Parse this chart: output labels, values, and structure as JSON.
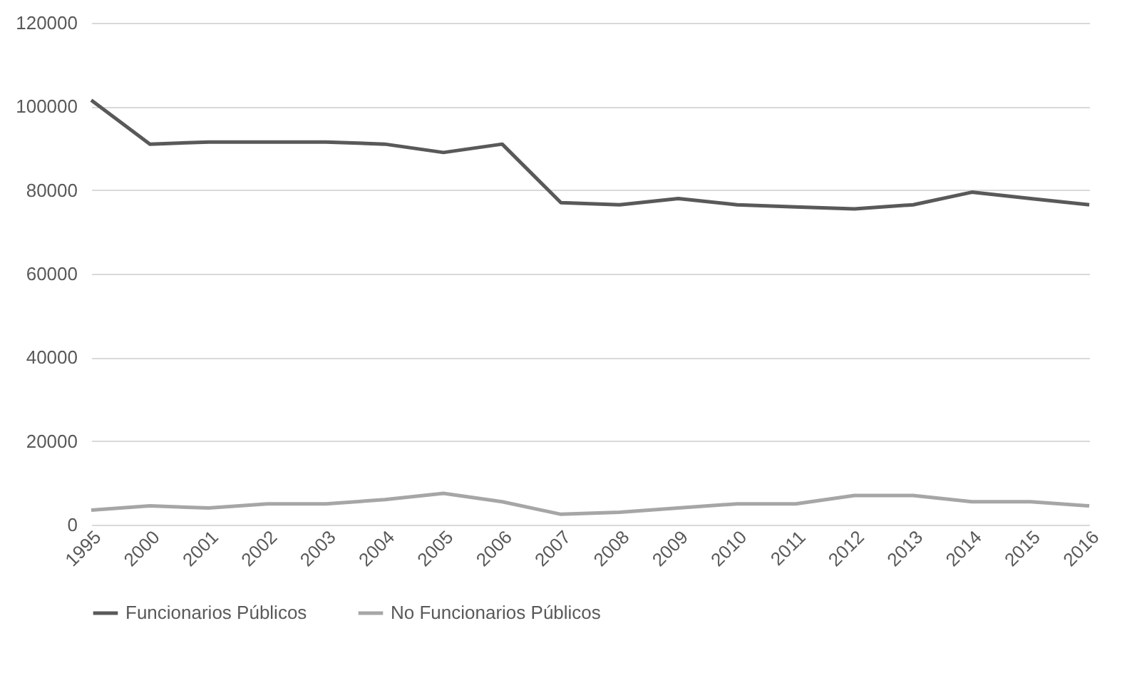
{
  "chart_data": {
    "type": "line",
    "categories": [
      "1995",
      "2000",
      "2001",
      "2002",
      "2003",
      "2004",
      "2005",
      "2006",
      "2007",
      "2008",
      "2009",
      "2010",
      "2011",
      "2012",
      "2013",
      "2014",
      "2015",
      "2016"
    ],
    "series": [
      {
        "name": "Funcionarios Públicos",
        "color": "#595959",
        "values": [
          101500,
          91000,
          91500,
          91500,
          91500,
          91000,
          89000,
          91000,
          77000,
          76500,
          78000,
          76500,
          76000,
          75500,
          76500,
          79500,
          78000,
          76500
        ]
      },
      {
        "name": "No Funcionarios Públicos",
        "color": "#a6a6a6",
        "values": [
          3500,
          4500,
          4000,
          5000,
          5000,
          6000,
          7500,
          5500,
          2500,
          3000,
          4000,
          5000,
          5000,
          7000,
          7000,
          5500,
          5500,
          4500
        ]
      }
    ],
    "ylim": [
      0,
      120000
    ],
    "yticks": [
      0,
      20000,
      40000,
      60000,
      80000,
      100000,
      120000
    ],
    "grid": "y",
    "legend": "bottom",
    "marker": "none",
    "line_style": "solid"
  }
}
